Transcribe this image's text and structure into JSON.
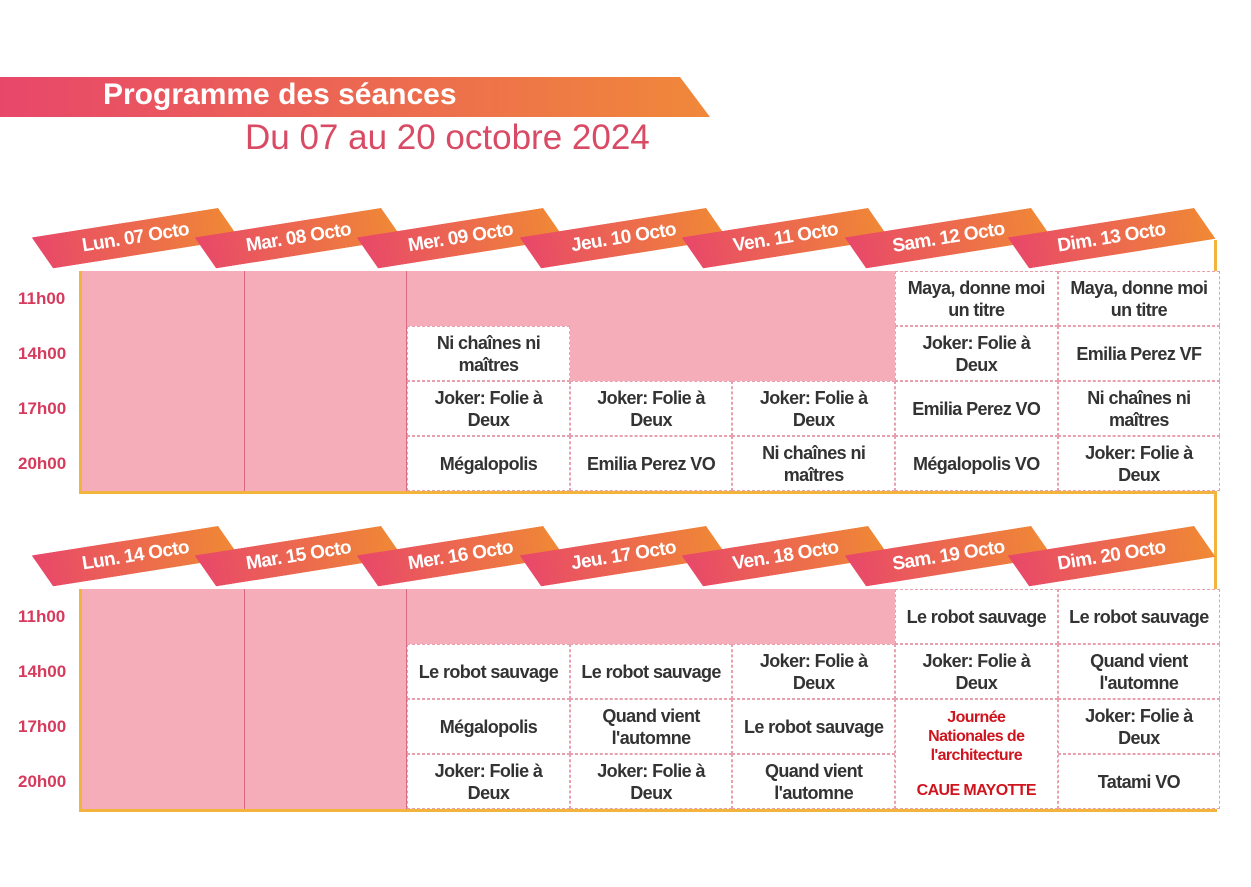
{
  "header": {
    "title": "Programme des séances",
    "subtitle": "Du 07 au 20 octobre 2024"
  },
  "weeks": [
    {
      "times": [
        "11h00",
        "14h00",
        "17h00",
        "20h00"
      ],
      "days": [
        {
          "label": "Lun. 07 Octo",
          "sessions": [
            null,
            null,
            null,
            null
          ]
        },
        {
          "label": "Mar. 08 Octo",
          "sessions": [
            null,
            null,
            null,
            null
          ]
        },
        {
          "label": "Mer. 09 Octo",
          "sessions": [
            null,
            "Ni chaînes ni maîtres",
            "Joker: Folie à Deux",
            "Mégalopolis"
          ]
        },
        {
          "label": "Jeu. 10 Octo",
          "sessions": [
            null,
            null,
            "Joker: Folie à Deux",
            "Emilia Perez VO"
          ]
        },
        {
          "label": "Ven. 11 Octo",
          "sessions": [
            null,
            null,
            "Joker: Folie à Deux",
            "Ni chaînes ni maîtres"
          ]
        },
        {
          "label": "Sam. 12 Octo",
          "sessions": [
            "Maya, donne moi un titre",
            "Joker: Folie à Deux",
            "Emilia Perez VO",
            "Mégalopolis VO"
          ]
        },
        {
          "label": "Dim. 13 Octo",
          "sessions": [
            "Maya, donne moi un titre",
            "Emilia Perez VF",
            "Ni chaînes ni maîtres",
            "Joker: Folie à Deux"
          ]
        }
      ]
    },
    {
      "times": [
        "11h00",
        "14h00",
        "17h00",
        "20h00"
      ],
      "days": [
        {
          "label": "Lun. 14 Octo",
          "sessions": [
            null,
            null,
            null,
            null
          ]
        },
        {
          "label": "Mar. 15 Octo",
          "sessions": [
            null,
            null,
            null,
            null
          ]
        },
        {
          "label": "Mer. 16 Octo",
          "sessions": [
            null,
            "Le robot sauvage",
            "Mégalopolis",
            "Joker: Folie à Deux"
          ]
        },
        {
          "label": "Jeu. 17 Octo",
          "sessions": [
            null,
            "Le robot sauvage",
            "Quand vient l'automne",
            "Joker: Folie à Deux"
          ]
        },
        {
          "label": "Ven. 18 Octo",
          "sessions": [
            null,
            "Joker: Folie à Deux",
            "Le robot sauvage",
            "Quand vient l'automne"
          ]
        },
        {
          "label": "Sam. 19 Octo",
          "sessions": [
            "Le robot sauvage",
            "Joker: Folie à Deux"
          ],
          "event": {
            "title": "Journée Nationales de l'architecture",
            "organizer": "CAUE MAYOTTE"
          }
        },
        {
          "label": "Dim. 20 Octo",
          "sessions": [
            "Le robot sauvage",
            "Quand vient l'automne",
            "Joker: Folie à Deux",
            "Tatami VO"
          ]
        }
      ]
    }
  ]
}
